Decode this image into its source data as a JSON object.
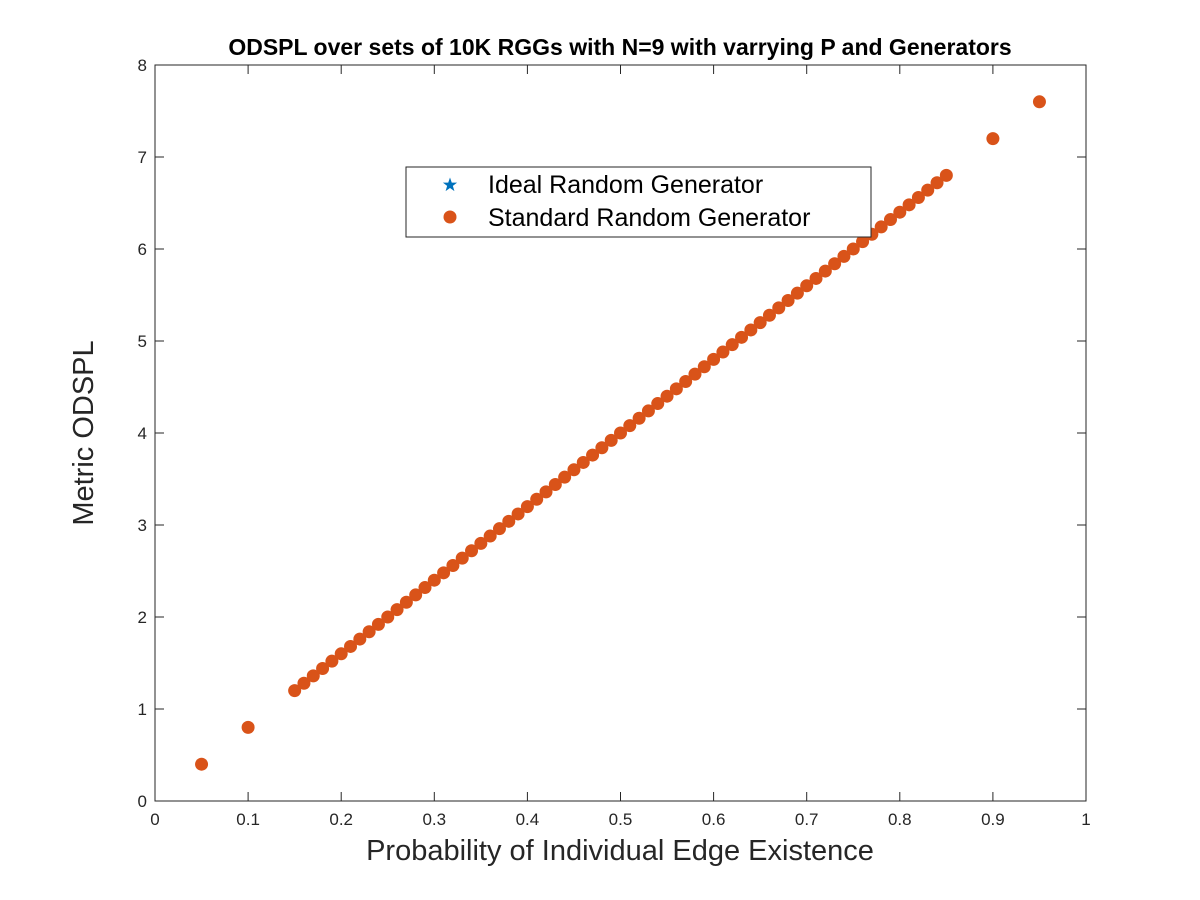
{
  "chart_data": {
    "type": "scatter",
    "title": "ODSPL over sets of 10K RGGs with N=9 with varrying P and Generators",
    "xlabel": "Probability of Individual Edge Existence",
    "ylabel": "Metric ODSPL",
    "xlim": [
      0,
      1
    ],
    "ylim": [
      0,
      8
    ],
    "xticks": [
      "0",
      "0.1",
      "0.2",
      "0.3",
      "0.4",
      "0.5",
      "0.6",
      "0.7",
      "0.8",
      "0.9",
      "1"
    ],
    "yticks": [
      "0",
      "1",
      "2",
      "3",
      "4",
      "5",
      "6",
      "7",
      "8"
    ],
    "grid": false,
    "legend_position": "upper-center",
    "series": [
      {
        "name": "Ideal Random Generator",
        "marker": "star",
        "color": "#0072BD",
        "x": [
          0.05,
          0.1,
          0.15,
          0.16,
          0.17,
          0.18,
          0.19,
          0.2,
          0.21,
          0.22,
          0.23,
          0.24,
          0.25,
          0.26,
          0.27,
          0.28,
          0.29,
          0.3,
          0.31,
          0.32,
          0.33,
          0.34,
          0.35,
          0.36,
          0.37,
          0.38,
          0.39,
          0.4,
          0.41,
          0.42,
          0.43,
          0.44,
          0.45,
          0.46,
          0.47,
          0.48,
          0.49,
          0.5,
          0.51,
          0.52,
          0.53,
          0.54,
          0.55,
          0.56,
          0.57,
          0.58,
          0.59,
          0.6,
          0.61,
          0.62,
          0.63,
          0.64,
          0.65,
          0.66,
          0.67,
          0.68,
          0.69,
          0.7,
          0.71,
          0.72,
          0.73,
          0.74,
          0.75,
          0.76,
          0.77,
          0.78,
          0.79,
          0.8,
          0.81,
          0.82,
          0.83,
          0.84,
          0.85,
          0.9,
          0.95
        ],
        "y": [
          0.4,
          0.8,
          1.2,
          1.28,
          1.36,
          1.44,
          1.52,
          1.6,
          1.68,
          1.76,
          1.84,
          1.92,
          2.0,
          2.08,
          2.16,
          2.24,
          2.32,
          2.4,
          2.48,
          2.56,
          2.64,
          2.72,
          2.8,
          2.88,
          2.96,
          3.04,
          3.12,
          3.2,
          3.28,
          3.36,
          3.44,
          3.52,
          3.6,
          3.68,
          3.76,
          3.84,
          3.92,
          4.0,
          4.08,
          4.16,
          4.24,
          4.32,
          4.4,
          4.48,
          4.56,
          4.64,
          4.72,
          4.8,
          4.88,
          4.96,
          5.04,
          5.12,
          5.2,
          5.28,
          5.36,
          5.44,
          5.52,
          5.6,
          5.68,
          5.76,
          5.84,
          5.92,
          6.0,
          6.08,
          6.16,
          6.24,
          6.32,
          6.4,
          6.48,
          6.56,
          6.64,
          6.72,
          6.8,
          7.2,
          7.6
        ]
      },
      {
        "name": "Standard Random Generator",
        "marker": "circle",
        "color": "#D95319",
        "x": [
          0.05,
          0.1,
          0.15,
          0.16,
          0.17,
          0.18,
          0.19,
          0.2,
          0.21,
          0.22,
          0.23,
          0.24,
          0.25,
          0.26,
          0.27,
          0.28,
          0.29,
          0.3,
          0.31,
          0.32,
          0.33,
          0.34,
          0.35,
          0.36,
          0.37,
          0.38,
          0.39,
          0.4,
          0.41,
          0.42,
          0.43,
          0.44,
          0.45,
          0.46,
          0.47,
          0.48,
          0.49,
          0.5,
          0.51,
          0.52,
          0.53,
          0.54,
          0.55,
          0.56,
          0.57,
          0.58,
          0.59,
          0.6,
          0.61,
          0.62,
          0.63,
          0.64,
          0.65,
          0.66,
          0.67,
          0.68,
          0.69,
          0.7,
          0.71,
          0.72,
          0.73,
          0.74,
          0.75,
          0.76,
          0.77,
          0.78,
          0.79,
          0.8,
          0.81,
          0.82,
          0.83,
          0.84,
          0.85,
          0.9,
          0.95
        ],
        "y": [
          0.4,
          0.8,
          1.2,
          1.28,
          1.36,
          1.44,
          1.52,
          1.6,
          1.68,
          1.76,
          1.84,
          1.92,
          2.0,
          2.08,
          2.16,
          2.24,
          2.32,
          2.4,
          2.48,
          2.56,
          2.64,
          2.72,
          2.8,
          2.88,
          2.96,
          3.04,
          3.12,
          3.2,
          3.28,
          3.36,
          3.44,
          3.52,
          3.6,
          3.68,
          3.76,
          3.84,
          3.92,
          4.0,
          4.08,
          4.16,
          4.24,
          4.32,
          4.4,
          4.48,
          4.56,
          4.64,
          4.72,
          4.8,
          4.88,
          4.96,
          5.04,
          5.12,
          5.2,
          5.28,
          5.36,
          5.44,
          5.52,
          5.6,
          5.68,
          5.76,
          5.84,
          5.92,
          6.0,
          6.08,
          6.16,
          6.24,
          6.32,
          6.4,
          6.48,
          6.56,
          6.64,
          6.72,
          6.8,
          7.2,
          7.6
        ]
      }
    ]
  }
}
